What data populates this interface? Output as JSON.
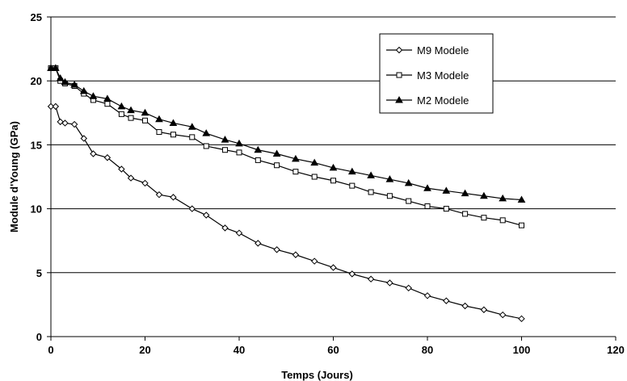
{
  "chart_data": {
    "type": "line",
    "xlabel": "Temps (Jours)",
    "ylabel": "Module d'Young (GPa)",
    "xlim": [
      0,
      120
    ],
    "ylim": [
      0,
      25
    ],
    "xticks": [
      0,
      20,
      40,
      60,
      80,
      100,
      120
    ],
    "yticks": [
      0,
      5,
      10,
      15,
      20,
      25
    ],
    "grid": "horizontal",
    "legend_position": "top-right",
    "series": [
      {
        "name": "M9 Modele",
        "marker": "diamond-open",
        "color": "#000000",
        "x": [
          0,
          1,
          2,
          3,
          5,
          7,
          9,
          12,
          15,
          17,
          20,
          23,
          26,
          30,
          33,
          37,
          40,
          44,
          48,
          52,
          56,
          60,
          64,
          68,
          72,
          76,
          80,
          84,
          88,
          92,
          96,
          100
        ],
        "y": [
          18.0,
          18.0,
          16.8,
          16.7,
          16.6,
          15.5,
          14.3,
          14.0,
          13.1,
          12.4,
          12.0,
          11.1,
          10.9,
          10.0,
          9.5,
          8.5,
          8.1,
          7.3,
          6.8,
          6.4,
          5.9,
          5.4,
          4.9,
          4.5,
          4.2,
          3.8,
          3.2,
          2.8,
          2.4,
          2.1,
          1.7,
          1.4
        ]
      },
      {
        "name": "M3 Modele",
        "marker": "square-open",
        "color": "#000000",
        "x": [
          0,
          1,
          2,
          3,
          5,
          7,
          9,
          12,
          15,
          17,
          20,
          23,
          26,
          30,
          33,
          37,
          40,
          44,
          48,
          52,
          56,
          60,
          64,
          68,
          72,
          76,
          80,
          84,
          88,
          92,
          96,
          100
        ],
        "y": [
          21.0,
          21.0,
          20.0,
          19.8,
          19.6,
          19.0,
          18.5,
          18.2,
          17.4,
          17.1,
          16.9,
          16.0,
          15.8,
          15.6,
          14.9,
          14.6,
          14.4,
          13.8,
          13.4,
          12.9,
          12.5,
          12.2,
          11.8,
          11.3,
          11.0,
          10.6,
          10.2,
          10.0,
          9.6,
          9.3,
          9.1,
          8.7
        ]
      },
      {
        "name": "M2 Modele",
        "marker": "triangle-filled",
        "color": "#000000",
        "x": [
          0,
          1,
          2,
          3,
          5,
          7,
          9,
          12,
          15,
          17,
          20,
          23,
          26,
          30,
          33,
          37,
          40,
          44,
          48,
          52,
          56,
          60,
          64,
          68,
          72,
          76,
          80,
          84,
          88,
          92,
          96,
          100
        ],
        "y": [
          21.0,
          21.0,
          20.2,
          19.9,
          19.7,
          19.2,
          18.8,
          18.6,
          18.0,
          17.7,
          17.5,
          17.0,
          16.7,
          16.4,
          15.9,
          15.4,
          15.1,
          14.6,
          14.3,
          13.9,
          13.6,
          13.2,
          12.9,
          12.6,
          12.3,
          12.0,
          11.6,
          11.4,
          11.2,
          11.0,
          10.8,
          10.7
        ]
      }
    ]
  }
}
